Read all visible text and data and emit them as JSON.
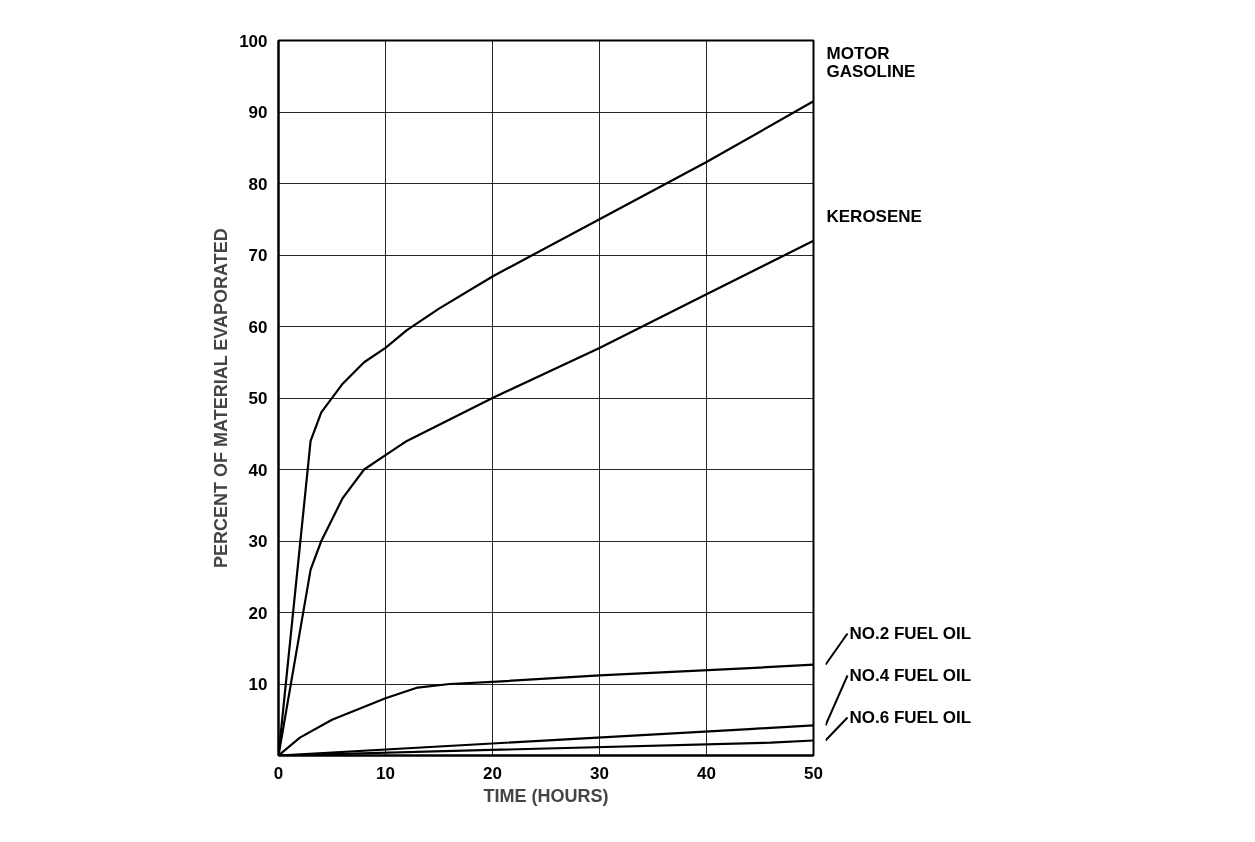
{
  "chart_data": {
    "type": "line",
    "xlabel": "TIME (HOURS)",
    "ylabel": "PERCENT OF MATERIAL EVAPORATED",
    "xlim": [
      0,
      50
    ],
    "ylim": [
      0,
      100
    ],
    "xticks": [
      0,
      10,
      20,
      30,
      40,
      50
    ],
    "yticks": [
      {
        "value": 0,
        "label": null
      },
      10,
      20,
      30,
      40,
      50,
      60,
      70,
      80,
      90,
      100
    ],
    "grid": true,
    "marker": "none",
    "line_style": "solid",
    "series": [
      {
        "name": "MOTOR\nGASOLINE",
        "color": "#000000",
        "x": [
          0,
          3,
          4,
          6,
          8,
          10,
          12,
          15,
          20,
          30,
          40,
          50
        ],
        "values": [
          0,
          44,
          48,
          52,
          55,
          57,
          59.5,
          62.5,
          67,
          75,
          83,
          91.5
        ]
      },
      {
        "name": "KEROSENE",
        "color": "#000000",
        "x": [
          0,
          3,
          4,
          6,
          8,
          10,
          12,
          20,
          30,
          40,
          50
        ],
        "values": [
          0,
          26,
          30,
          36,
          40,
          42,
          44,
          50,
          57,
          64.5,
          72
        ]
      },
      {
        "name": "NO.2  FUEL  OIL",
        "color": "#000000",
        "x": [
          0,
          2,
          5,
          10,
          13,
          16,
          20,
          30,
          45,
          50
        ],
        "values": [
          0,
          2.5,
          5,
          8,
          9.5,
          10,
          10.3,
          11.2,
          12.3,
          12.7
        ]
      },
      {
        "name": "NO.4  FUEL  OIL",
        "color": "#000000",
        "x": [
          0,
          44,
          50
        ],
        "values": [
          0,
          3.7,
          4.2
        ]
      },
      {
        "name": "NO.6  FUEL  OIL",
        "color": "#000000",
        "x": [
          0,
          46,
          50
        ],
        "values": [
          0,
          1.8,
          2.1
        ]
      }
    ]
  }
}
